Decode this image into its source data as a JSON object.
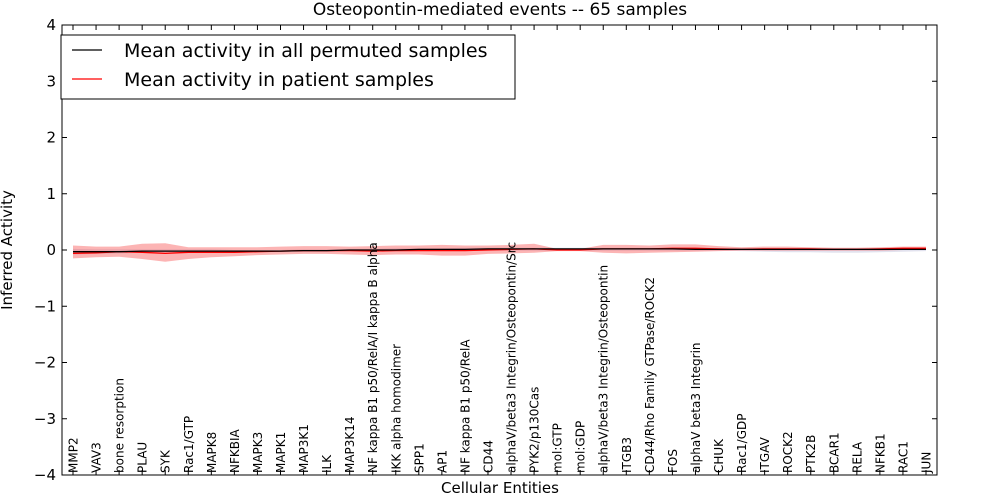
{
  "chart_data": {
    "type": "line",
    "title": "Osteopontin-mediated events -- 65 samples",
    "xlabel": "Cellular Entities",
    "ylabel": "Inferred Activity",
    "ylim": [
      -4,
      4
    ],
    "yticks": [
      -4,
      -3,
      -2,
      -1,
      0,
      1,
      2,
      3,
      4
    ],
    "ytick_labels": [
      "−4",
      "−3",
      "−2",
      "−1",
      "0",
      "1",
      "2",
      "3",
      "4"
    ],
    "grid": false,
    "legend_position": "top-left",
    "categories": [
      "MMP2",
      "VAV3",
      "bone resorption",
      "PLAU",
      "SYK",
      "Rac1/GTP",
      "MAPK8",
      "NFKBIA",
      "MAPK3",
      "MAPK1",
      "MAP3K1",
      "ILK",
      "MAP3K14",
      "NF kappa B1 p50/RelA/I kappa B alpha",
      "IKK alpha homodimer",
      "SPP1",
      "AP1",
      "NF kappa B1 p50/RelA",
      "CD44",
      "alphaV/beta3 Integrin/Osteopontin/Src",
      "PYK2/p130Cas",
      "mol:GTP",
      "mol:GDP",
      "alphaV/beta3 Integrin/Osteopontin",
      "ITGB3",
      "CD44/Rho Family GTPase/ROCK2",
      "FOS",
      "alphaV beta3 Integrin",
      "CHUK",
      "Rac1/GDP",
      "ITGAV",
      "ROCK2",
      "PTK2B",
      "BCAR1",
      "RELA",
      "NFKB1",
      "RAC1",
      "JUN"
    ],
    "series": [
      {
        "name": "Mean activity in all permuted samples",
        "color": "#000000",
        "values": [
          -0.03,
          -0.03,
          -0.03,
          -0.02,
          -0.02,
          -0.02,
          -0.02,
          -0.02,
          -0.02,
          -0.02,
          -0.01,
          -0.01,
          0.0,
          0.0,
          0.0,
          0.01,
          0.01,
          0.01,
          0.02,
          0.02,
          0.02,
          0.02,
          0.02,
          0.02,
          0.02,
          0.02,
          0.02,
          0.01,
          0.01,
          0.01,
          0.01,
          0.01,
          0.01,
          0.01,
          0.01,
          0.01,
          0.01,
          0.01
        ],
        "band_lower": [
          -0.08,
          -0.07,
          -0.06,
          -0.05,
          -0.04,
          -0.04,
          -0.04,
          -0.04,
          -0.03,
          -0.03,
          -0.03,
          -0.03,
          -0.02,
          -0.02,
          -0.02,
          -0.02,
          -0.02,
          -0.02,
          -0.01,
          -0.01,
          -0.01,
          -0.01,
          -0.01,
          -0.01,
          -0.01,
          -0.01,
          -0.01,
          -0.01,
          -0.01,
          -0.02,
          -0.03,
          -0.04,
          -0.04,
          -0.05,
          -0.05,
          -0.04,
          -0.03,
          -0.02
        ],
        "band_upper": [
          0.02,
          0.01,
          0.01,
          0.01,
          0.01,
          0.01,
          0.01,
          0.0,
          0.0,
          0.0,
          0.01,
          0.01,
          0.02,
          0.02,
          0.03,
          0.03,
          0.03,
          0.04,
          0.04,
          0.04,
          0.04,
          0.04,
          0.04,
          0.04,
          0.04,
          0.04,
          0.04,
          0.04,
          0.03,
          0.03,
          0.03,
          0.03,
          0.03,
          0.03,
          0.03,
          0.03,
          0.03,
          0.03
        ]
      },
      {
        "name": "Mean activity in patient samples",
        "color": "#ff0000",
        "values": [
          -0.06,
          -0.05,
          -0.03,
          -0.04,
          -0.06,
          -0.04,
          -0.04,
          -0.04,
          -0.03,
          -0.02,
          -0.01,
          -0.01,
          -0.01,
          -0.02,
          -0.01,
          -0.01,
          -0.01,
          -0.01,
          0.0,
          0.01,
          0.02,
          0.0,
          0.0,
          0.02,
          0.02,
          0.02,
          0.03,
          0.03,
          0.02,
          0.01,
          0.02,
          0.02,
          0.02,
          0.01,
          0.01,
          0.02,
          0.03,
          0.03
        ],
        "band_lower": [
          -0.15,
          -0.13,
          -0.12,
          -0.16,
          -0.21,
          -0.16,
          -0.13,
          -0.11,
          -0.09,
          -0.08,
          -0.07,
          -0.07,
          -0.08,
          -0.09,
          -0.08,
          -0.08,
          -0.1,
          -0.1,
          -0.07,
          -0.06,
          -0.05,
          -0.02,
          -0.02,
          -0.05,
          -0.06,
          -0.05,
          -0.04,
          -0.03,
          -0.02,
          -0.01,
          -0.01,
          -0.01,
          -0.01,
          -0.01,
          -0.01,
          -0.01,
          -0.0,
          -0.0
        ],
        "band_upper": [
          0.08,
          0.06,
          0.06,
          0.11,
          0.12,
          0.05,
          0.05,
          0.05,
          0.05,
          0.06,
          0.07,
          0.07,
          0.06,
          0.07,
          0.08,
          0.08,
          0.09,
          0.08,
          0.08,
          0.09,
          0.11,
          0.02,
          0.02,
          0.09,
          0.09,
          0.08,
          0.1,
          0.1,
          0.07,
          0.05,
          0.06,
          0.06,
          0.05,
          0.04,
          0.04,
          0.05,
          0.06,
          0.06
        ]
      }
    ]
  }
}
